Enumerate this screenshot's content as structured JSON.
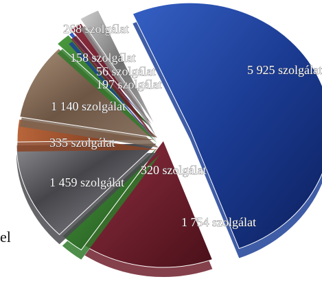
{
  "chart_data": {
    "type": "pie",
    "exploded": true,
    "unit_suffix": " szolgálat",
    "slices": [
      {
        "label": "5 925 szolgálat",
        "value": 5925,
        "color": "#1d3f96",
        "texture": "glossy-blue"
      },
      {
        "label": "1 754 szolgálat",
        "value": 1754,
        "color": "#6e1e2c",
        "texture": "glossy-burgundy"
      },
      {
        "label": "320 szolgálat",
        "value": 320,
        "color": "#2f7a2a",
        "texture": "glossy-green"
      },
      {
        "label": "1 459 szolgálat",
        "value": 1459,
        "color": "#4a4a4f",
        "texture": "dark-marble"
      },
      {
        "label": "335 szolgálat",
        "value": 335,
        "color": "#8a4324",
        "texture": "copper"
      },
      {
        "label": "1 140 szolgálat",
        "value": 1140,
        "color": "#7a6452",
        "texture": "brown-marble"
      },
      {
        "label": "197 szolgálat",
        "value": 197,
        "color": "#2f7a2a",
        "texture": "glossy-green"
      },
      {
        "label": "56 szolgálat",
        "value": 56,
        "color": "#1d3f96",
        "texture": "glossy-blue"
      },
      {
        "label": "158 szolgálat",
        "value": 158,
        "color": "#6e1e2c",
        "texture": "glossy-burgundy"
      },
      {
        "label": "268 szolgálat",
        "value": 268,
        "color": "#8a8a8a",
        "texture": "gray-marble"
      }
    ]
  },
  "edge_text": "el"
}
